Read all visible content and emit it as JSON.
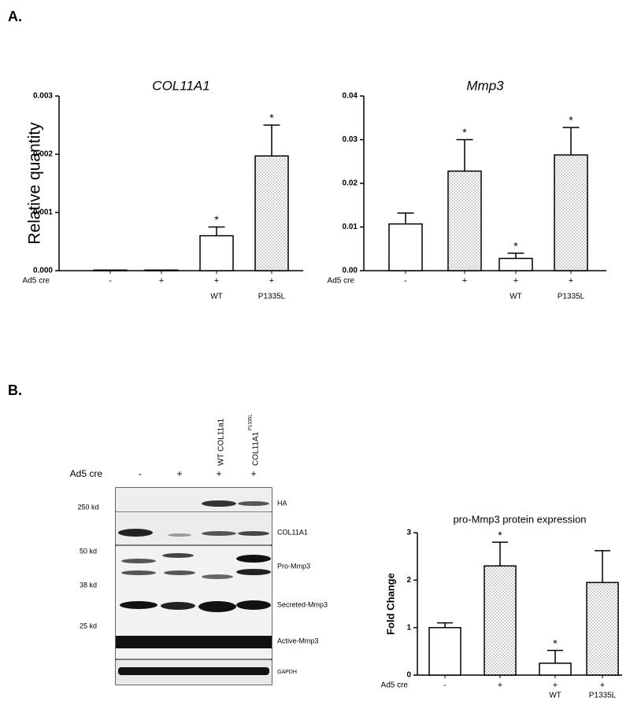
{
  "panels": {
    "a": "A.",
    "b": "B."
  },
  "blot": {
    "treatment_label": "Ad5 cre",
    "lanes": [
      "-",
      "+",
      "+",
      "+"
    ],
    "lane_titles": [
      null,
      null,
      "WT COL11a1",
      "COL11A1"
    ],
    "lane_title_superscripts": [
      null,
      null,
      null,
      "P1335L"
    ],
    "bands": [
      "HA",
      "COL11A1",
      "Pro-Mmp3",
      "Secreted-Mmp3",
      "Active-Mmp3",
      "GAPDH"
    ],
    "markers": [
      "250 kd",
      "50 kd",
      "38 kd",
      "25 kd"
    ]
  },
  "chart_data": [
    {
      "type": "bar",
      "title": "COL11A1",
      "y_label": "Relative quantity",
      "x_row_label": "Ad5 cre",
      "categories": [
        "-",
        "+",
        "+",
        "+"
      ],
      "sublabels": [
        null,
        null,
        "WT",
        "P1335L"
      ],
      "values": [
        1e-05,
        1e-05,
        0.0006,
        0.00197
      ],
      "errors": [
        0,
        0,
        0.00015,
        0.00053
      ],
      "annotations": [
        null,
        null,
        "*",
        "*"
      ],
      "fills": [
        "white",
        "dotted",
        "white",
        "dotted"
      ],
      "ylim": [
        0,
        0.003
      ],
      "yticks": [
        {
          "value": 0,
          "label": "0.000"
        },
        {
          "value": 0.001,
          "label": "0.001"
        },
        {
          "value": 0.002,
          "label": "0.002"
        },
        {
          "value": 0.003,
          "label": "0.003"
        }
      ]
    },
    {
      "type": "bar",
      "title": "Mmp3",
      "x_row_label": "Ad5 cre",
      "categories": [
        "-",
        "+",
        "+",
        "+"
      ],
      "sublabels": [
        null,
        null,
        "WT",
        "P1335L"
      ],
      "values": [
        0.0107,
        0.0228,
        0.0028,
        0.0265
      ],
      "errors": [
        0.0025,
        0.0072,
        0.0012,
        0.0063
      ],
      "annotations": [
        null,
        "*",
        "*",
        "*"
      ],
      "fills": [
        "white",
        "dotted",
        "white",
        "dotted"
      ],
      "ylim": [
        0,
        0.04
      ],
      "yticks": [
        {
          "value": 0,
          "label": "0.00"
        },
        {
          "value": 0.01,
          "label": "0.01"
        },
        {
          "value": 0.02,
          "label": "0.02"
        },
        {
          "value": 0.03,
          "label": "0.03"
        },
        {
          "value": 0.04,
          "label": "0.04"
        }
      ]
    },
    {
      "type": "bar",
      "title": "pro-Mmp3 protein expression",
      "y_label": "Fold Change",
      "x_row_label": "Ad5 cre",
      "categories": [
        "-",
        "+",
        "+",
        "+"
      ],
      "sublabels": [
        null,
        null,
        "WT",
        "P1335L"
      ],
      "values": [
        1.0,
        2.3,
        0.25,
        1.95
      ],
      "errors": [
        0.1,
        0.5,
        0.27,
        0.67
      ],
      "annotations": [
        null,
        "*",
        "*",
        null
      ],
      "fills": [
        "white",
        "dotted",
        "white",
        "dotted"
      ],
      "ylim": [
        0,
        3
      ],
      "yticks": [
        0,
        1,
        2,
        3
      ]
    }
  ]
}
